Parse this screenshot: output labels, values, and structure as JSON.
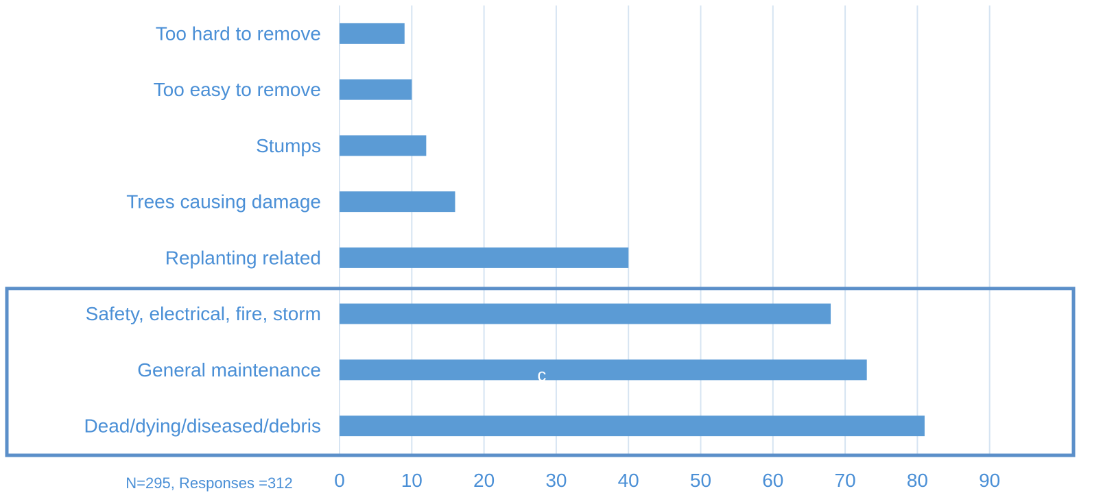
{
  "chart_data": {
    "type": "bar",
    "orientation": "horizontal",
    "categories": [
      "Too hard to remove",
      "Too easy to remove",
      "Stumps",
      "Trees causing damage",
      "Replanting related",
      "Safety, electrical, fire, storm",
      "General maintenance",
      "Dead/dying/diseased/debris"
    ],
    "values": [
      9,
      10,
      12,
      16,
      40,
      68,
      73,
      81
    ],
    "xlim": [
      0,
      100
    ],
    "xticks": [
      "0",
      "10",
      "20",
      "30",
      "40",
      "50",
      "60",
      "70",
      "80",
      "90"
    ],
    "xtick_values": [
      0,
      10,
      20,
      30,
      40,
      50,
      60,
      70,
      80,
      90
    ],
    "grid": "vertical",
    "note": "N=295, Responses =312",
    "stray_text": "c",
    "highlighted_categories": [
      "Safety, electrical, fire, storm",
      "General maintenance",
      "Dead/dying/diseased/debris"
    ],
    "colors": {
      "bar": "#5b9bd5",
      "text": "#4a8fd6",
      "grid": "#d6e4f2",
      "highlight_box": "#5b8fc9"
    }
  }
}
